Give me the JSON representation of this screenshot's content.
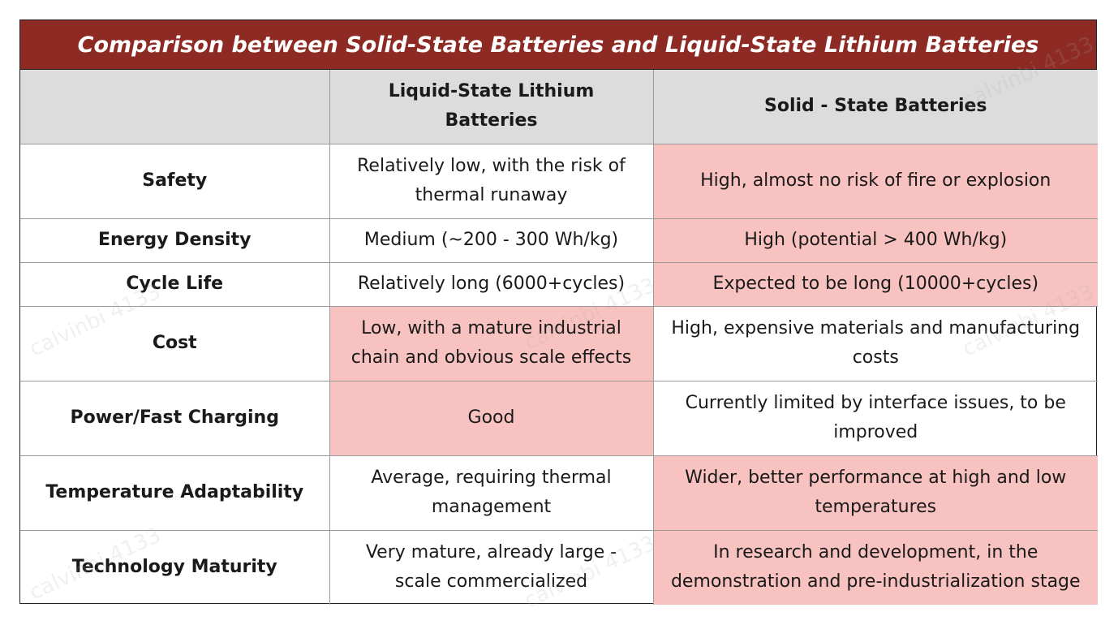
{
  "title": "Comparison between Solid-State Batteries and Liquid-State Lithium Batteries",
  "header": {
    "blank": "",
    "col1": "Liquid-State Lithium Batteries",
    "col2": "Solid - State Batteries"
  },
  "rows": [
    {
      "label": "Safety",
      "liquid": "Relatively low, with the risk of thermal runaway",
      "solid": "High, almost no risk of fire or explosion"
    },
    {
      "label": "Energy Density",
      "liquid": "Medium (~200 - 300 Wh/kg)",
      "solid": "High (potential > 400 Wh/kg)"
    },
    {
      "label": "Cycle Life",
      "liquid": "Relatively long (6000+cycles)",
      "solid": "Expected to be long (10000+cycles)"
    },
    {
      "label": "Cost",
      "liquid": "Low, with a mature industrial chain and obvious scale effects",
      "solid": "High, expensive materials and manufacturing costs"
    },
    {
      "label": "Power/Fast Charging",
      "liquid": "Good",
      "solid": "Currently limited by interface issues, to be improved"
    },
    {
      "label": "Temperature Adaptability",
      "liquid": "Average, requiring thermal management",
      "solid": "Wider, better performance at high and low temperatures"
    },
    {
      "label": "Technology Maturity",
      "liquid": "Very mature, already large - scale commercialized",
      "solid": "In research and development, in the demonstration and pre-industrialization stage"
    }
  ],
  "watermark": "calvinbi 4133",
  "colors": {
    "title_bg": "#8e2a24",
    "header_bg": "#dcdcdc",
    "highlight": "#f7c2bf"
  }
}
